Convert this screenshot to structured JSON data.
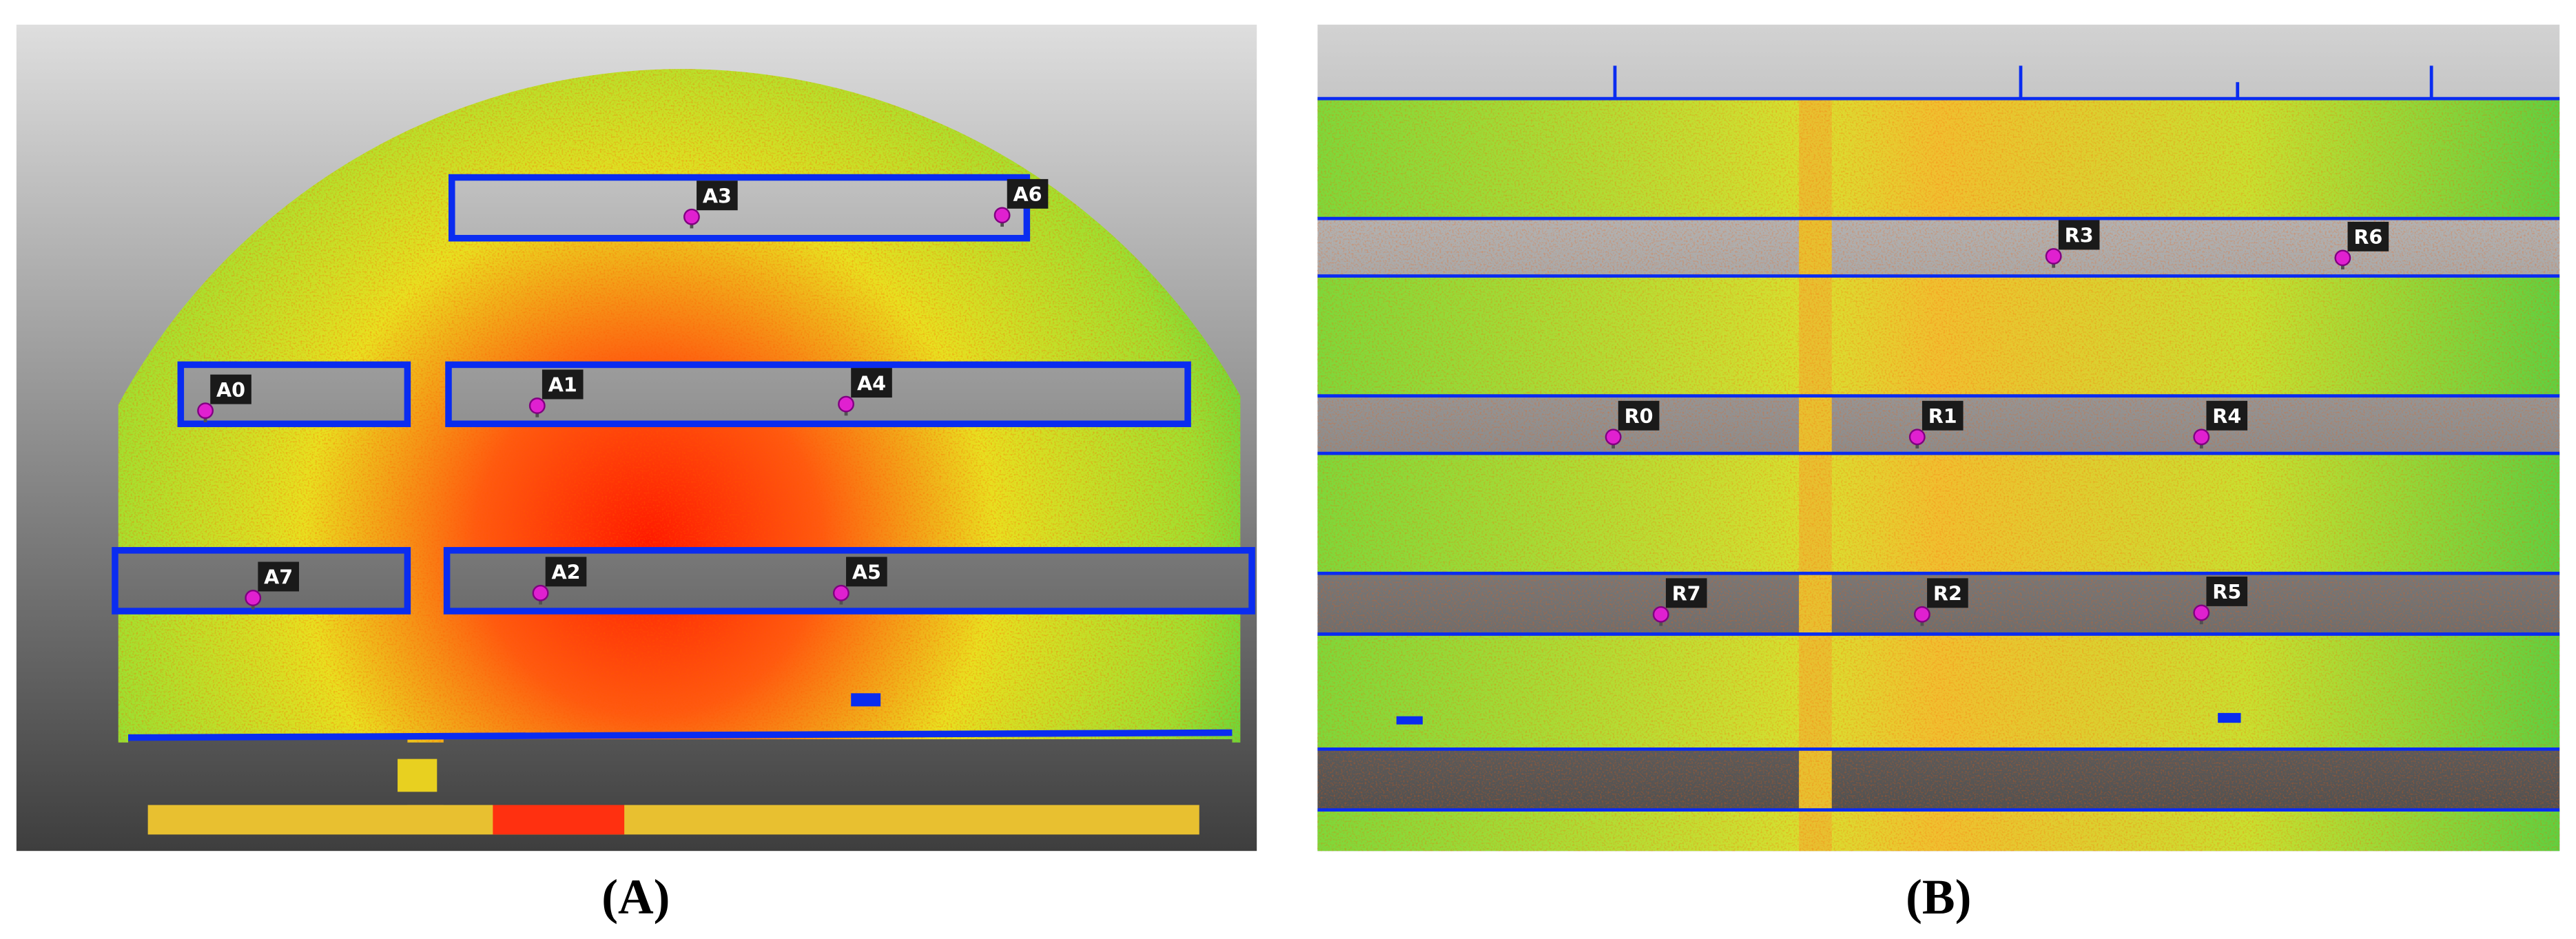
{
  "panels": [
    {
      "caption": "(A)",
      "markers": [
        "A0",
        "A1",
        "A4",
        "A3",
        "A6",
        "A7",
        "A2",
        "A5"
      ]
    },
    {
      "caption": "(B)",
      "markers": [
        "R3",
        "R6",
        "R0",
        "R1",
        "R4",
        "R7",
        "R2",
        "R5"
      ]
    }
  ]
}
